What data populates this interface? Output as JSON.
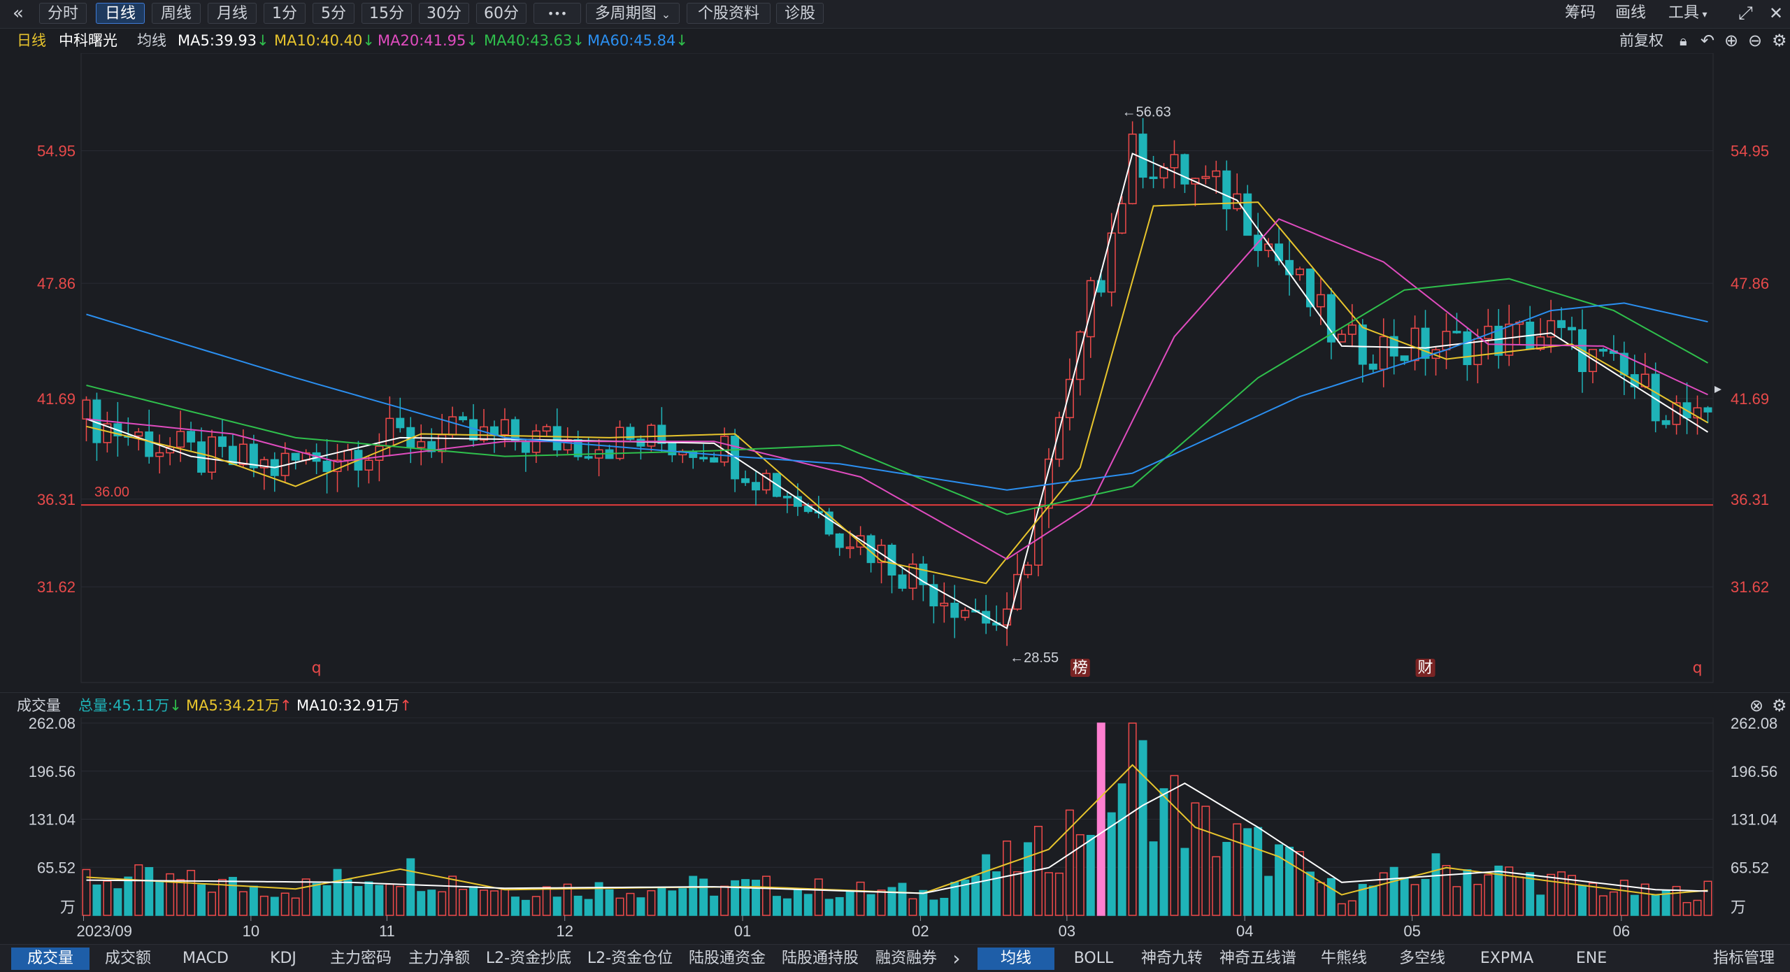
{
  "toolbar": {
    "collapse_icon": "«",
    "periods": [
      "分时",
      "日线",
      "周线",
      "月线",
      "1分",
      "5分",
      "15分",
      "30分",
      "60分"
    ],
    "active_period": "日线",
    "more": "•••",
    "multi_period": "多周期图",
    "stock_info": "个股资料",
    "diagnose": "诊股",
    "right": {
      "chips": "筹码",
      "draw": "画线",
      "tools": "工具"
    }
  },
  "price_legend": {
    "period": "日线",
    "stock_name": "中科曙光",
    "ma_label": "均线",
    "ma5": "MA5:39.93",
    "ma10": "MA10:40.40",
    "ma20": "MA20:41.95",
    "ma40": "MA40:43.63",
    "ma60": "MA60:45.84",
    "adjust": "前复权"
  },
  "volume_legend": {
    "label": "成交量",
    "total": "总量:45.11万",
    "ma5": "MA5:34.21万",
    "ma10": "MA10:32.91万"
  },
  "colors": {
    "up": "#ef4a4a",
    "down": "#1fb3b8",
    "ma5": "#ffffff",
    "ma10": "#e8c52d",
    "ma20": "#e04cbf",
    "ma40": "#2fc04c",
    "ma60": "#2b8ff0",
    "axis_text": "#e84a4a",
    "hline": "#e23b3b"
  },
  "chart_data": [
    {
      "type": "candlestick",
      "title": "中科曙光 日线",
      "y_ticks": [
        "54.95",
        "47.86",
        "41.69",
        "36.31",
        "31.62"
      ],
      "x_ticks": [
        "2023/09",
        "10",
        "11",
        "12",
        "01",
        "02",
        "03",
        "04",
        "05",
        "06"
      ],
      "ylim": [
        26.5,
        59.5
      ],
      "annotations": {
        "high": "←56.63",
        "low": "←28.55",
        "hline": "36.00",
        "hline_value": 36.0
      },
      "markers": [
        "q",
        "榜",
        "财",
        "q"
      ],
      "ma_series": [
        {
          "name": "MA5",
          "anchors": [
            [
              0,
              40.6
            ],
            [
              10,
              38.6
            ],
            [
              18,
              38.0
            ],
            [
              30,
              39.6
            ],
            [
              42,
              39.5
            ],
            [
              60,
              39.3
            ],
            [
              80,
              31.9
            ],
            [
              88,
              29.4
            ],
            [
              93,
              40
            ],
            [
              100,
              54.8
            ],
            [
              110,
              52.3
            ],
            [
              120,
              44.5
            ],
            [
              128,
              44.4
            ],
            [
              140,
              45.2
            ],
            [
              155,
              39.9
            ]
          ]
        },
        {
          "name": "MA10",
          "anchors": [
            [
              0,
              40.2
            ],
            [
              12,
              38.6
            ],
            [
              20,
              37.0
            ],
            [
              32,
              39.8
            ],
            [
              50,
              39.6
            ],
            [
              62,
              39.8
            ],
            [
              76,
              33
            ],
            [
              86,
              31.8
            ],
            [
              95,
              38
            ],
            [
              102,
              52
            ],
            [
              112,
              52.2
            ],
            [
              122,
              45.5
            ],
            [
              130,
              43.8
            ],
            [
              142,
              44.6
            ],
            [
              155,
              40.4
            ]
          ]
        },
        {
          "name": "MA20",
          "anchors": [
            [
              0,
              40.6
            ],
            [
              14,
              39.8
            ],
            [
              24,
              38.3
            ],
            [
              40,
              39.4
            ],
            [
              60,
              39.4
            ],
            [
              74,
              37.5
            ],
            [
              88,
              33.1
            ],
            [
              96,
              36
            ],
            [
              104,
              45
            ],
            [
              114,
              51.3
            ],
            [
              124,
              49
            ],
            [
              134,
              44.6
            ],
            [
              145,
              44.5
            ],
            [
              155,
              41.9
            ]
          ]
        },
        {
          "name": "MA40",
          "anchors": [
            [
              0,
              42.4
            ],
            [
              20,
              39.6
            ],
            [
              40,
              38.6
            ],
            [
              60,
              38.9
            ],
            [
              72,
              39.2
            ],
            [
              88,
              35.5
            ],
            [
              100,
              37
            ],
            [
              112,
              42.8
            ],
            [
              126,
              47.5
            ],
            [
              136,
              48.1
            ],
            [
              146,
              46.4
            ],
            [
              155,
              43.6
            ]
          ]
        },
        {
          "name": "MA60",
          "anchors": [
            [
              0,
              46.2
            ],
            [
              20,
              42.8
            ],
            [
              40,
              39.6
            ],
            [
              62,
              38.6
            ],
            [
              72,
              38.2
            ],
            [
              88,
              36.8
            ],
            [
              100,
              37.7
            ],
            [
              116,
              41.8
            ],
            [
              130,
              44.3
            ],
            [
              140,
              46.4
            ],
            [
              147,
              46.8
            ],
            [
              155,
              45.8
            ]
          ]
        }
      ]
    },
    {
      "type": "bar",
      "title": "成交量",
      "unit": "万",
      "y_ticks": [
        "262.08",
        "196.56",
        "131.04",
        "65.52",
        "万"
      ],
      "ylim": [
        0,
        262.08
      ],
      "ma_series": [
        {
          "name": "MA5",
          "anchors": [
            [
              0,
              52
            ],
            [
              20,
              36
            ],
            [
              30,
              63
            ],
            [
              40,
              35
            ],
            [
              55,
              38
            ],
            [
              64,
              39
            ],
            [
              80,
              30
            ],
            [
              92,
              90
            ],
            [
              100,
              205
            ],
            [
              106,
              120
            ],
            [
              114,
              80
            ],
            [
              120,
              28
            ],
            [
              130,
              65
            ],
            [
              150,
              28
            ],
            [
              155,
              34
            ]
          ]
        },
        {
          "name": "MA10",
          "anchors": [
            [
              0,
              48
            ],
            [
              25,
              45
            ],
            [
              40,
              37
            ],
            [
              60,
              39
            ],
            [
              80,
              30
            ],
            [
              92,
              65
            ],
            [
              101,
              150
            ],
            [
              105,
              180
            ],
            [
              112,
              120
            ],
            [
              120,
              45
            ],
            [
              135,
              60
            ],
            [
              150,
              35
            ],
            [
              155,
              33
            ]
          ]
        }
      ]
    }
  ],
  "bottom_tabs": {
    "left": [
      "成交量",
      "成交额",
      "MACD",
      "KDJ",
      "主力密码",
      "主力净额",
      "L2-资金抄底",
      "L2-资金仓位",
      "陆股通资金",
      "陆股通持股",
      "融资融券"
    ],
    "right": [
      "均线",
      "BOLL",
      "神奇九转",
      "神奇五线谱",
      "牛熊线",
      "多空线",
      "EXPMA",
      "ENE"
    ],
    "manage": "指标管理",
    "next_icon": "›"
  }
}
